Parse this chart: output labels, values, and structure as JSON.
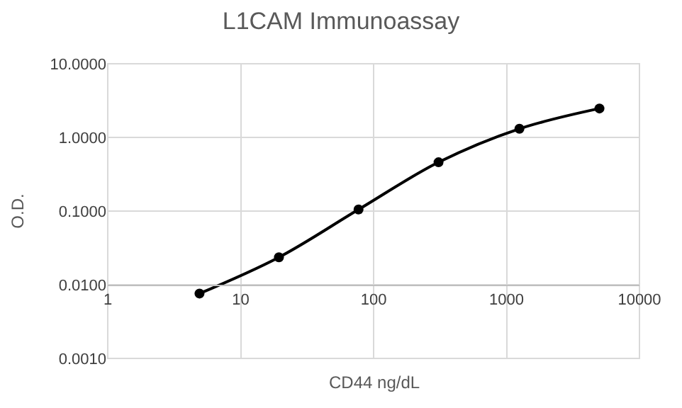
{
  "chart_data": {
    "type": "line",
    "title": "L1CAM Immunoassay",
    "xlabel": "CD44 ng/dL",
    "ylabel": "O.D.",
    "x": [
      4.9,
      19.4,
      77,
      308,
      1250,
      5000
    ],
    "series": [
      {
        "color": "#000000",
        "values": [
          0.0076,
          0.0236,
          0.105,
          0.46,
          1.31,
          2.47
        ]
      }
    ],
    "log": "xy",
    "xlim": [
      1,
      10000
    ],
    "xticks": [
      1,
      10,
      100,
      1000,
      10000
    ],
    "ylim": [
      0.001,
      10
    ],
    "yticks": [
      {
        "value": 0.001,
        "label": "0.0010"
      },
      {
        "value": 0.01,
        "label": "0.0100"
      },
      {
        "value": 0.1,
        "label": "0.1000"
      },
      {
        "value": 1,
        "label": "1.0000"
      },
      {
        "value": 10,
        "label": "10.0000"
      }
    ],
    "grid": true,
    "marker": "circle"
  }
}
